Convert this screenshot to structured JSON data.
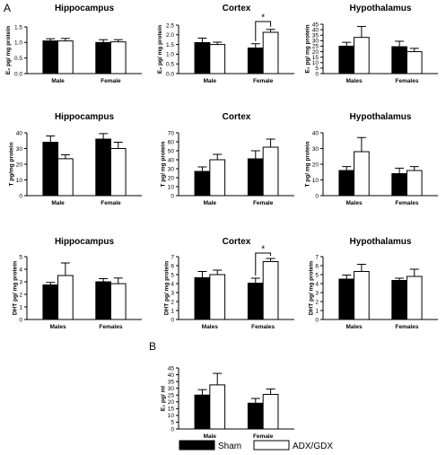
{
  "figure": {
    "panel_letters": [
      "A",
      "B"
    ],
    "legend": [
      {
        "label": "Sham",
        "fill": "#000000"
      },
      {
        "label": "ADX/GDX",
        "fill": "#ffffff"
      }
    ]
  },
  "chart_data": [
    {
      "type": "bar",
      "title": "Hippocampus",
      "ylabel": "E₂ pg/ mg protein",
      "ylim": [
        0,
        1.5
      ],
      "yticks": [
        0,
        0.5,
        1.0,
        1.5
      ],
      "yticklabels": [
        "0.0",
        "0.5",
        "1.0",
        "1.5"
      ],
      "categories": [
        "Male",
        "Female"
      ],
      "series": [
        {
          "name": "Sham",
          "values": [
            1.05,
            1.0
          ],
          "errors": [
            0.07,
            0.09
          ]
        },
        {
          "name": "ADX/GDX",
          "values": [
            1.05,
            1.02
          ],
          "errors": [
            0.08,
            0.07
          ]
        }
      ]
    },
    {
      "type": "bar",
      "title": "Cortex",
      "ylabel": "E₂ pg/ mg protein",
      "ylim": [
        0,
        2.5
      ],
      "yticks": [
        0,
        0.5,
        1.0,
        1.5,
        2.0,
        2.5
      ],
      "yticklabels": [
        "0.0",
        "0.5",
        "1.0",
        "1.5",
        "2.0",
        "2.5"
      ],
      "categories": [
        "Male",
        "Female"
      ],
      "series": [
        {
          "name": "Sham",
          "values": [
            1.6,
            1.32
          ],
          "errors": [
            0.23,
            0.22
          ]
        },
        {
          "name": "ADX/GDX",
          "values": [
            1.5,
            2.13
          ],
          "errors": [
            0.12,
            0.15
          ]
        }
      ],
      "annotations": [
        {
          "category": "Female",
          "text": "*"
        }
      ]
    },
    {
      "type": "bar",
      "title": "Hypothalamus",
      "ylabel": "E₂ pg/ mg protein",
      "ylim": [
        0,
        45
      ],
      "yticks": [
        0,
        5,
        10,
        15,
        20,
        25,
        30,
        35,
        40,
        45
      ],
      "yticklabels": [
        "0",
        "5",
        "10",
        "15",
        "20",
        "25",
        "30",
        "35",
        "40",
        "45"
      ],
      "categories": [
        "Males",
        "Females"
      ],
      "series": [
        {
          "name": "Sham",
          "values": [
            25,
            24.5
          ],
          "errors": [
            3.5,
            5
          ]
        },
        {
          "name": "ADX/GDX",
          "values": [
            33,
            20
          ],
          "errors": [
            10,
            3
          ]
        }
      ]
    },
    {
      "type": "bar",
      "title": "Hippocampus",
      "ylabel": "T pg/mg protein",
      "ylim": [
        0,
        40
      ],
      "yticks": [
        0,
        10,
        20,
        30,
        40
      ],
      "yticklabels": [
        "0",
        "10",
        "20",
        "30",
        "40"
      ],
      "categories": [
        "Male",
        "Female"
      ],
      "series": [
        {
          "name": "Sham",
          "values": [
            34,
            36
          ],
          "errors": [
            4,
            3.5
          ]
        },
        {
          "name": "ADX/GDX",
          "values": [
            23.5,
            30
          ],
          "errors": [
            2.5,
            4
          ]
        }
      ]
    },
    {
      "type": "bar",
      "title": "Cortex",
      "ylabel": "T pg/ mg protein",
      "ylim": [
        0,
        70
      ],
      "yticks": [
        0,
        10,
        20,
        30,
        40,
        50,
        60,
        70
      ],
      "yticklabels": [
        "0",
        "10",
        "20",
        "30",
        "40",
        "50",
        "60",
        "70"
      ],
      "categories": [
        "Male",
        "Female"
      ],
      "series": [
        {
          "name": "Sham",
          "values": [
            27,
            41
          ],
          "errors": [
            5,
            9
          ]
        },
        {
          "name": "ADX/GDX",
          "values": [
            40,
            54
          ],
          "errors": [
            6,
            9
          ]
        }
      ]
    },
    {
      "type": "bar",
      "title": "Hypothalamus",
      "ylabel": "T pg/ mg protein",
      "ylim": [
        0,
        40
      ],
      "yticks": [
        0,
        10,
        20,
        30,
        40
      ],
      "yticklabels": [
        "0",
        "10",
        "20",
        "30",
        "40"
      ],
      "categories": [
        "Males",
        "Females"
      ],
      "series": [
        {
          "name": "Sham",
          "values": [
            16,
            14
          ],
          "errors": [
            2.5,
            3.5
          ]
        },
        {
          "name": "ADX/GDX",
          "values": [
            28,
            16
          ],
          "errors": [
            9,
            2.5
          ]
        }
      ]
    },
    {
      "type": "bar",
      "title": "Hippocampus",
      "ylabel": "DHT pg/ mg protein",
      "ylim": [
        0,
        5
      ],
      "yticks": [
        0,
        1,
        2,
        3,
        4,
        5
      ],
      "yticklabels": [
        "0",
        "1",
        "2",
        "3",
        "4",
        "5"
      ],
      "categories": [
        "Males",
        "Females"
      ],
      "series": [
        {
          "name": "Sham",
          "values": [
            2.75,
            3.0
          ],
          "errors": [
            0.2,
            0.25
          ]
        },
        {
          "name": "ADX/GDX",
          "values": [
            3.5,
            2.85
          ],
          "errors": [
            1.0,
            0.45
          ]
        }
      ]
    },
    {
      "type": "bar",
      "title": "Cortex",
      "ylabel": "DHT pg/ mg protein",
      "ylim": [
        0,
        7
      ],
      "yticks": [
        0,
        1,
        2,
        3,
        4,
        5,
        6,
        7
      ],
      "yticklabels": [
        "0",
        "1",
        "2",
        "3",
        "4",
        "5",
        "6",
        "7"
      ],
      "categories": [
        "Males",
        "Females"
      ],
      "series": [
        {
          "name": "Sham",
          "values": [
            4.65,
            4.05
          ],
          "errors": [
            0.7,
            0.55
          ]
        },
        {
          "name": "ADX/GDX",
          "values": [
            5.0,
            6.45
          ],
          "errors": [
            0.5,
            0.35
          ]
        }
      ],
      "annotations": [
        {
          "category": "Females",
          "text": "*"
        }
      ]
    },
    {
      "type": "bar",
      "title": "Hypothalamus",
      "ylabel": "DHT pg/ mg protein",
      "ylim": [
        0,
        7
      ],
      "yticks": [
        0,
        1,
        2,
        3,
        4,
        5,
        6,
        7
      ],
      "yticklabels": [
        "0",
        "1",
        "2",
        "3",
        "4",
        "5",
        "6",
        "7"
      ],
      "categories": [
        "Males",
        "Females"
      ],
      "series": [
        {
          "name": "Sham",
          "values": [
            4.5,
            4.35
          ],
          "errors": [
            0.45,
            0.25
          ]
        },
        {
          "name": "ADX/GDX",
          "values": [
            5.35,
            4.8
          ],
          "errors": [
            0.8,
            0.8
          ]
        }
      ]
    },
    {
      "type": "bar",
      "title": "",
      "ylabel": "E₂ pg/ ml",
      "ylim": [
        0,
        45
      ],
      "yticks": [
        0,
        5,
        10,
        15,
        20,
        25,
        30,
        35,
        40,
        45
      ],
      "yticklabels": [
        "0",
        "5",
        "10",
        "15",
        "20",
        "25",
        "30",
        "35",
        "40",
        "45"
      ],
      "categories": [
        "Male",
        "Female"
      ],
      "series": [
        {
          "name": "Sham",
          "values": [
            25,
            19
          ],
          "errors": [
            4,
            3.5
          ]
        },
        {
          "name": "ADX/GDX",
          "values": [
            32.5,
            25.5
          ],
          "errors": [
            8.5,
            4
          ]
        }
      ]
    }
  ]
}
